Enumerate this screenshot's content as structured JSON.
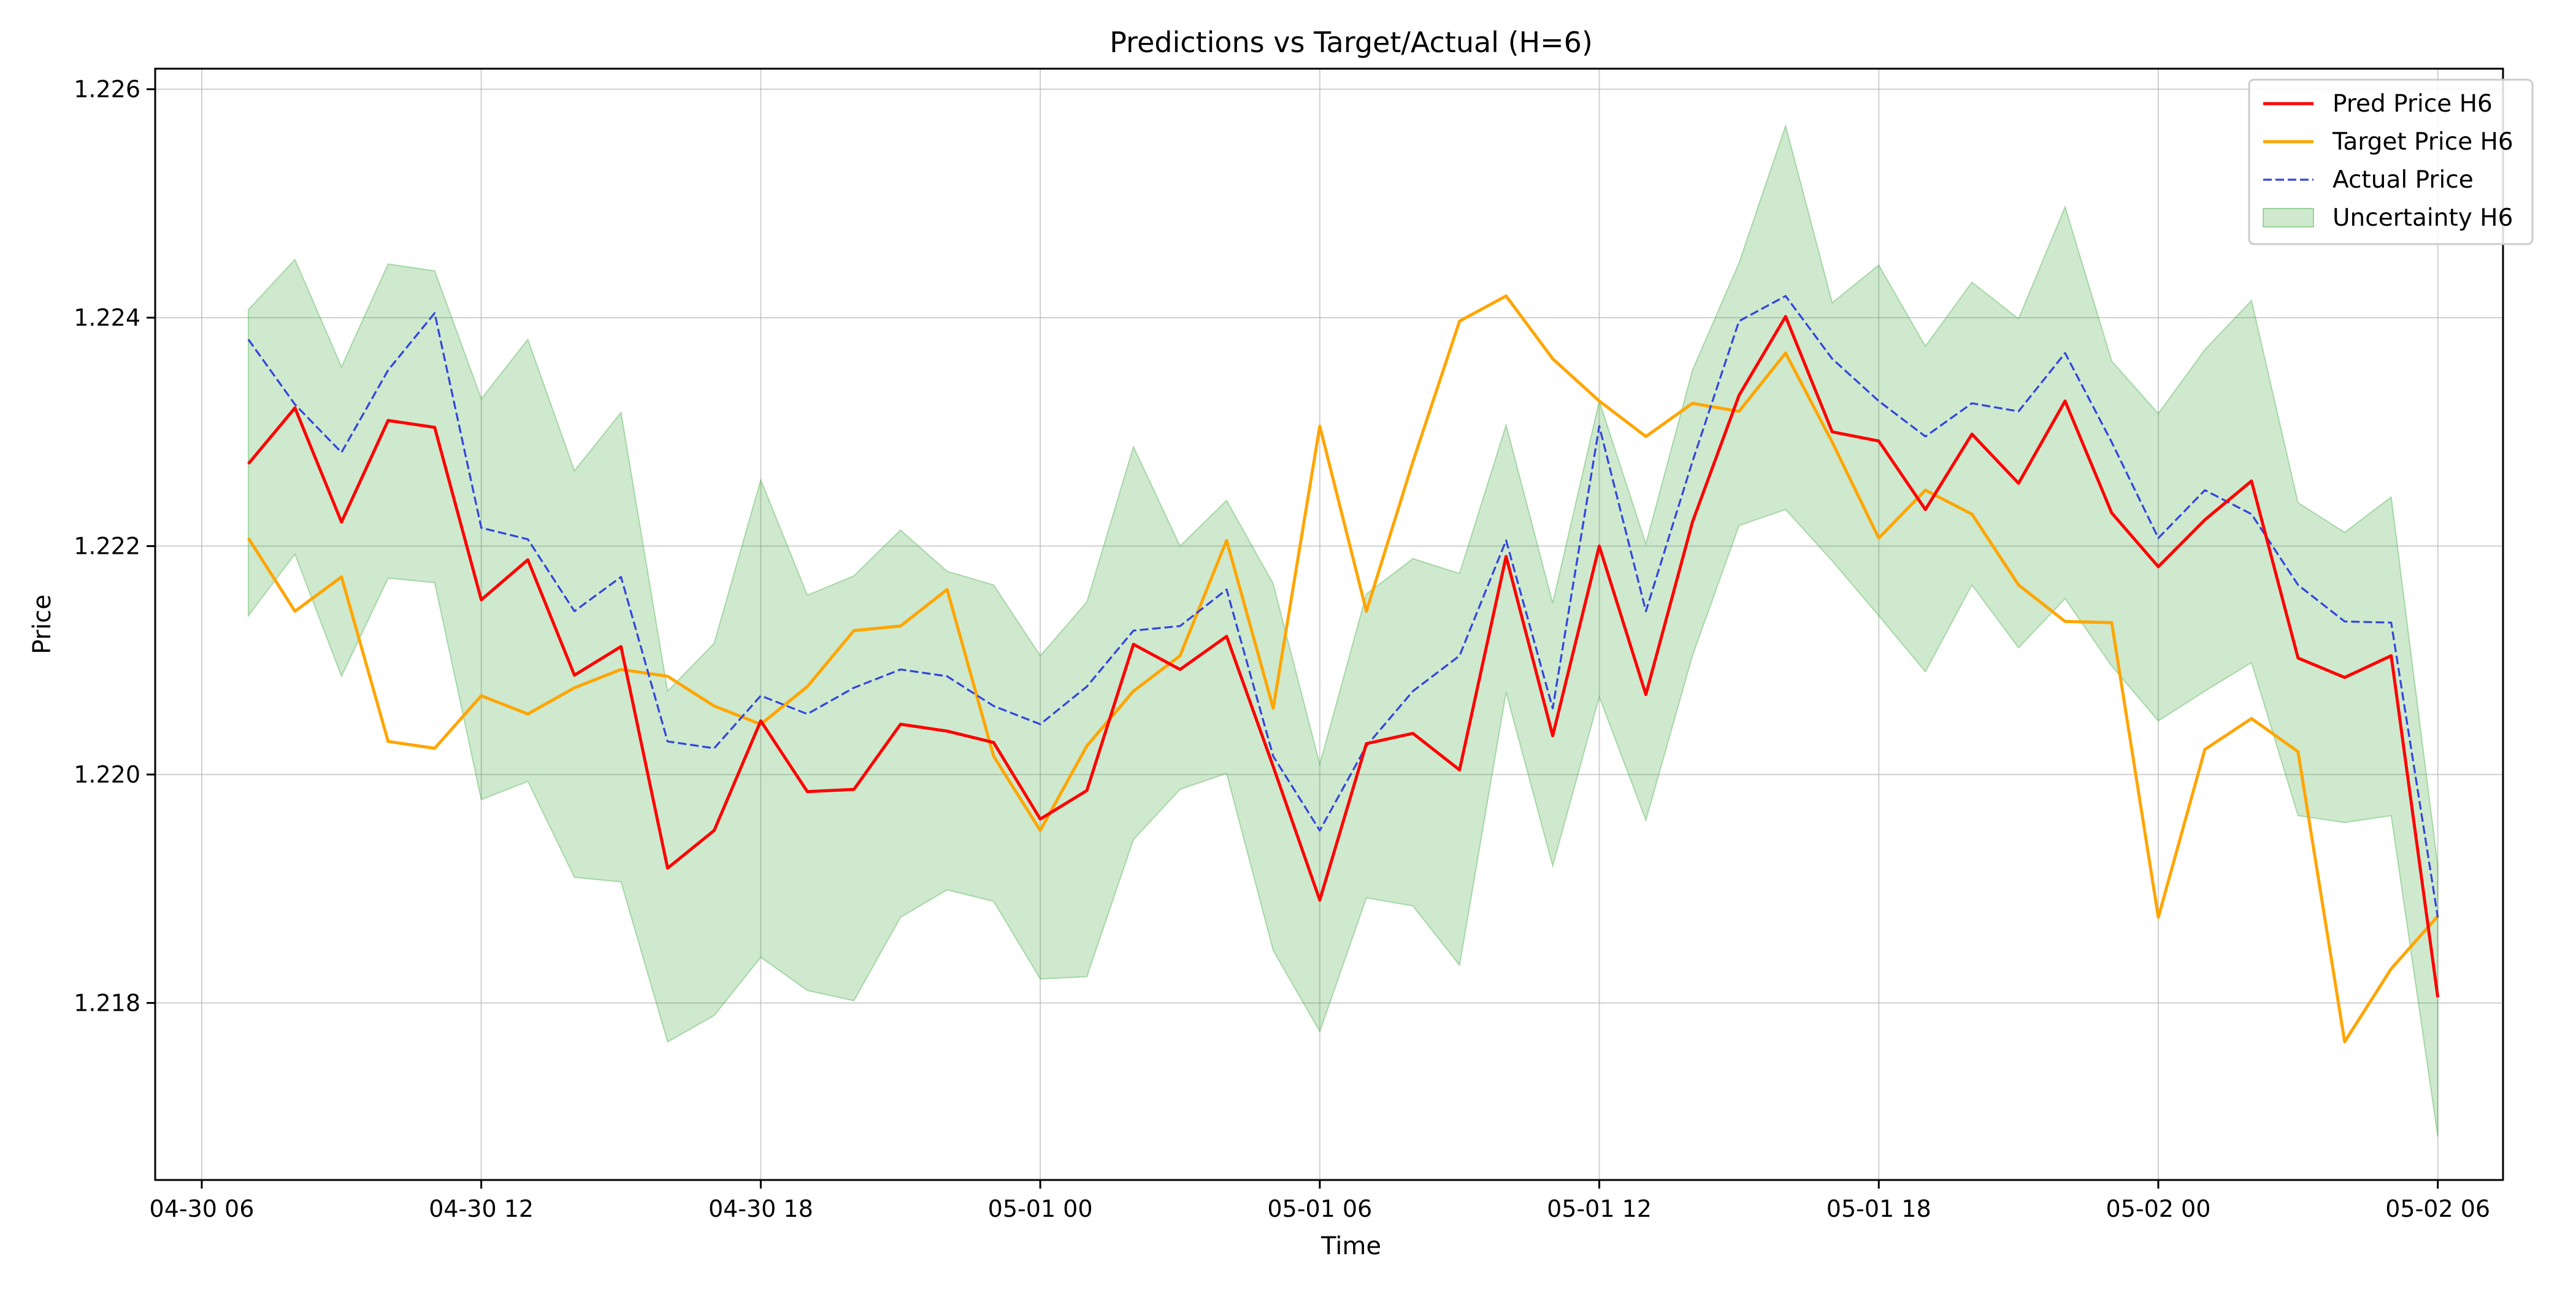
{
  "chart_data": {
    "type": "line",
    "title": "Predictions vs Target/Actual (H=6)",
    "xlabel": "Time",
    "ylabel": "Price",
    "x_start": "04-30 07",
    "x_step_hours": 1,
    "xlim": [
      "04-30 05:00",
      "05-02 07:24"
    ],
    "ylim": [
      1.21645,
      1.22618
    ],
    "x_ticks": [
      "04-30 06",
      "04-30 12",
      "04-30 18",
      "05-01 00",
      "05-01 06",
      "05-01 12",
      "05-01 18",
      "05-02 00",
      "05-02 06"
    ],
    "y_ticks": [
      "1.218",
      "1.220",
      "1.222",
      "1.224",
      "1.226"
    ],
    "grid": true,
    "legend_position": "top-right",
    "series": [
      {
        "name": "Pred Price H6",
        "color": "#ff0000",
        "style": "solid",
        "values": [
          1.22272,
          1.22321,
          1.22221,
          1.2231,
          1.22304,
          1.22153,
          1.22188,
          1.22087,
          1.22112,
          1.21918,
          1.21951,
          1.22047,
          1.21985,
          1.21987,
          1.22044,
          1.22038,
          1.22028,
          1.21961,
          1.21986,
          1.22114,
          1.22092,
          1.22121,
          1.22007,
          1.2189,
          1.22027,
          1.22036,
          1.22004,
          1.22191,
          1.22034,
          1.222,
          1.2207,
          1.22221,
          1.22332,
          1.22401,
          1.223,
          1.22292,
          1.22232,
          1.22298,
          1.22255,
          1.22327,
          1.22229,
          1.22182,
          1.22223,
          1.22257,
          1.22102,
          1.22085,
          1.22104,
          1.21805
        ]
      },
      {
        "name": "Target Price H6",
        "color": "#ffa500",
        "style": "solid",
        "values": [
          1.22207,
          1.22143,
          1.22173,
          1.22029,
          1.22023,
          1.22069,
          1.22053,
          1.22076,
          1.22092,
          1.22086,
          1.2206,
          1.22044,
          1.22077,
          1.22126,
          1.2213,
          1.22162,
          1.22016,
          1.21951,
          1.22025,
          1.22073,
          1.22104,
          1.22205,
          1.22058,
          1.22305,
          1.22143,
          1.22274,
          1.22397,
          1.22419,
          1.22364,
          1.22327,
          1.22296,
          1.22325,
          1.22318,
          1.22369,
          1.22291,
          1.22207,
          1.22249,
          1.22228,
          1.22166,
          1.22134,
          1.22133,
          1.21875,
          1.22022,
          1.22049,
          1.2202,
          1.21766,
          1.2183,
          1.21876
        ]
      },
      {
        "name": "Actual Price",
        "color": "#3344dd",
        "style": "dashed",
        "values": [
          1.22381,
          1.22324,
          1.22282,
          1.22354,
          1.22404,
          1.22216,
          1.22206,
          1.22143,
          1.22173,
          1.22029,
          1.22023,
          1.22069,
          1.22053,
          1.22076,
          1.22092,
          1.22086,
          1.2206,
          1.22044,
          1.22077,
          1.22126,
          1.2213,
          1.22162,
          1.22016,
          1.21951,
          1.22025,
          1.22073,
          1.22104,
          1.22205,
          1.22058,
          1.22305,
          1.22143,
          1.22274,
          1.22397,
          1.22419,
          1.22364,
          1.22327,
          1.22296,
          1.22325,
          1.22318,
          1.22369,
          1.22291,
          1.22207,
          1.22249,
          1.22228,
          1.22166,
          1.22134,
          1.22133,
          1.21875
        ]
      }
    ],
    "band": {
      "name": "Uncertainty H6",
      "color": "#2ca02c",
      "opacity": 0.23,
      "upper": [
        1.22407,
        1.22451,
        1.22357,
        1.22447,
        1.22441,
        1.22329,
        1.22381,
        1.22266,
        1.22317,
        1.22073,
        1.22115,
        1.22258,
        1.22157,
        1.22174,
        1.22214,
        1.22178,
        1.22166,
        1.22104,
        1.22151,
        1.22287,
        1.222,
        1.2224,
        1.22167,
        1.22009,
        1.22158,
        1.22189,
        1.22176,
        1.22306,
        1.2215,
        1.22327,
        1.22202,
        1.22354,
        1.22448,
        1.22568,
        1.22413,
        1.22446,
        1.22375,
        1.22431,
        1.22399,
        1.22497,
        1.22362,
        1.22316,
        1.22372,
        1.22415,
        1.22238,
        1.22212,
        1.22243,
        1.2192
      ],
      "lower": [
        1.22139,
        1.22193,
        1.22086,
        1.22172,
        1.22168,
        1.21978,
        1.21994,
        1.2191,
        1.21906,
        1.21766,
        1.21789,
        1.2184,
        1.21811,
        1.21802,
        1.21875,
        1.21899,
        1.21889,
        1.21821,
        1.21823,
        1.21943,
        1.21987,
        1.22001,
        1.21846,
        1.21775,
        1.21892,
        1.21885,
        1.21833,
        1.22072,
        1.2192,
        1.22068,
        1.2196,
        1.22104,
        1.22218,
        1.22232,
        1.22187,
        1.22139,
        1.2209,
        1.22166,
        1.22111,
        1.22154,
        1.22095,
        1.22047,
        1.22073,
        1.22098,
        1.21964,
        1.21958,
        1.21964,
        1.21683
      ]
    }
  }
}
